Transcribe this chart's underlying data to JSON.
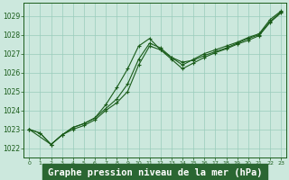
{
  "bg_color": "#cce8dd",
  "grid_color": "#99ccbb",
  "line_color": "#1a5c1a",
  "marker_color": "#1a5c1a",
  "xlabel": "Graphe pression niveau de la mer (hPa)",
  "xlim": [
    -0.5,
    23.5
  ],
  "ylim": [
    1021.5,
    1029.7
  ],
  "yticks": [
    1022,
    1023,
    1024,
    1025,
    1026,
    1027,
    1028,
    1029
  ],
  "xticks": [
    0,
    1,
    2,
    3,
    4,
    5,
    6,
    7,
    8,
    9,
    10,
    11,
    12,
    13,
    14,
    15,
    16,
    17,
    18,
    19,
    20,
    21,
    22,
    23
  ],
  "series": [
    {
      "x": [
        0,
        1,
        2,
        3,
        4,
        5,
        6,
        7,
        8,
        9,
        10,
        11,
        12,
        13,
        14,
        15,
        16,
        17,
        18,
        19,
        20,
        21,
        22,
        23
      ],
      "y": [
        1023.0,
        1022.8,
        1022.2,
        1022.7,
        1023.1,
        1023.3,
        1023.6,
        1024.1,
        1024.6,
        1025.4,
        1026.7,
        1027.55,
        1027.3,
        1026.8,
        1026.55,
        1026.65,
        1026.9,
        1027.1,
        1027.3,
        1027.55,
        1027.8,
        1028.0,
        1028.7,
        1029.2
      ]
    },
    {
      "x": [
        0,
        1,
        2,
        3,
        4,
        5,
        6,
        7,
        8,
        9,
        10,
        11,
        12,
        13,
        14,
        15,
        16,
        17,
        18,
        19,
        20,
        21,
        22,
        23
      ],
      "y": [
        1023.0,
        1022.8,
        1022.2,
        1022.7,
        1023.1,
        1023.3,
        1023.6,
        1024.3,
        1025.2,
        1026.2,
        1027.4,
        1027.8,
        1027.2,
        1026.8,
        1026.4,
        1026.7,
        1027.0,
        1027.2,
        1027.4,
        1027.6,
        1027.85,
        1028.05,
        1028.8,
        1029.25
      ]
    },
    {
      "x": [
        0,
        2,
        3,
        4,
        5,
        6,
        7,
        8,
        9,
        10,
        11,
        12,
        13,
        14,
        15,
        16,
        17,
        18,
        19,
        20,
        21,
        22,
        23
      ],
      "y": [
        1023.0,
        1022.2,
        1022.7,
        1023.0,
        1023.2,
        1023.5,
        1024.0,
        1024.4,
        1025.0,
        1026.4,
        1027.4,
        1027.2,
        1026.7,
        1026.2,
        1026.5,
        1026.8,
        1027.05,
        1027.25,
        1027.5,
        1027.7,
        1027.95,
        1028.65,
        1029.15
      ]
    }
  ]
}
